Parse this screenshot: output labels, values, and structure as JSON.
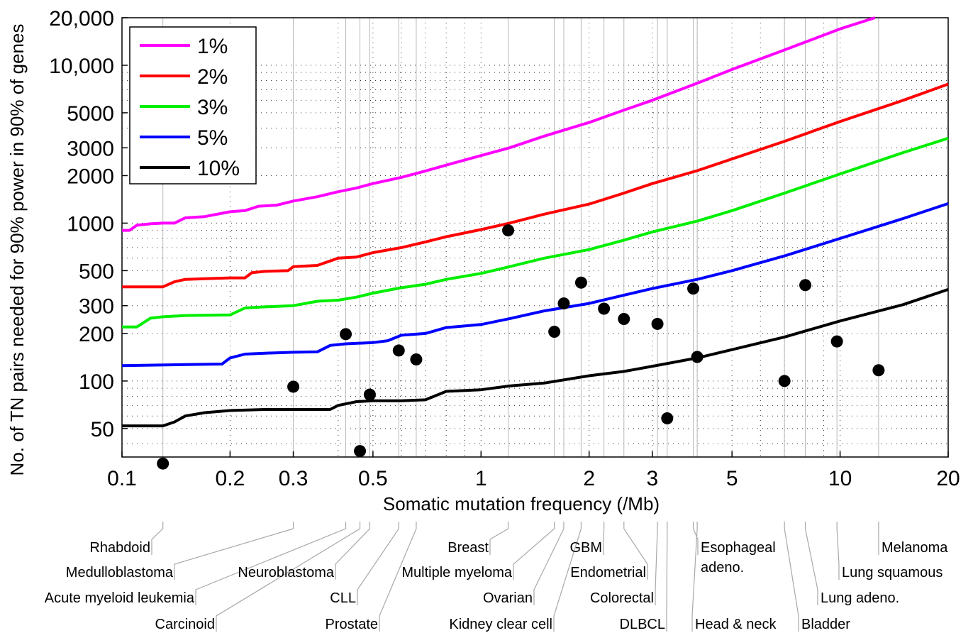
{
  "chart_data": {
    "type": "line",
    "xlabel": "Somatic mutation frequency (/Mb)",
    "ylabel": "No. of TN pairs needed for 90% power in 90% of genes",
    "x_scale": "log",
    "y_scale": "log",
    "xlim": [
      0.1,
      20
    ],
    "ylim": [
      33,
      20000
    ],
    "x_ticks": [
      0.1,
      0.2,
      0.3,
      0.5,
      1,
      2,
      3,
      5,
      10,
      20
    ],
    "x_tick_labels": [
      "0.1",
      "0.2",
      "0.3",
      "0.5",
      "1",
      "2",
      "3",
      "5",
      "10",
      "20"
    ],
    "y_ticks": [
      50,
      100,
      200,
      300,
      500,
      1000,
      2000,
      3000,
      5000,
      10000,
      20000
    ],
    "y_tick_labels": [
      "50",
      "100",
      "200",
      "300",
      "500",
      "1000",
      "2000",
      "3000",
      "5000",
      "10,000",
      "20,000"
    ],
    "grid": "dotted",
    "legend_position": "top-left",
    "series": [
      {
        "name": "1%",
        "color": "#ff00ff",
        "points": [
          [
            0.1,
            900
          ],
          [
            0.105,
            900
          ],
          [
            0.11,
            970
          ],
          [
            0.12,
            990
          ],
          [
            0.13,
            1000
          ],
          [
            0.14,
            1000
          ],
          [
            0.15,
            1080
          ],
          [
            0.17,
            1100
          ],
          [
            0.2,
            1180
          ],
          [
            0.22,
            1200
          ],
          [
            0.24,
            1280
          ],
          [
            0.27,
            1300
          ],
          [
            0.3,
            1380
          ],
          [
            0.35,
            1470
          ],
          [
            0.4,
            1580
          ],
          [
            0.45,
            1670
          ],
          [
            0.5,
            1780
          ],
          [
            0.6,
            1950
          ],
          [
            0.7,
            2140
          ],
          [
            0.8,
            2330
          ],
          [
            1.0,
            2680
          ],
          [
            1.2,
            3000
          ],
          [
            1.5,
            3560
          ],
          [
            2.0,
            4340
          ],
          [
            2.5,
            5200
          ],
          [
            3.0,
            6000
          ],
          [
            4.0,
            7700
          ],
          [
            5.0,
            9400
          ],
          [
            7.0,
            12500
          ],
          [
            10.0,
            17000
          ],
          [
            12.5,
            20500
          ]
        ]
      },
      {
        "name": "2%",
        "color": "#ff0000",
        "points": [
          [
            0.1,
            395
          ],
          [
            0.13,
            395
          ],
          [
            0.14,
            425
          ],
          [
            0.15,
            440
          ],
          [
            0.17,
            445
          ],
          [
            0.2,
            450
          ],
          [
            0.22,
            450
          ],
          [
            0.23,
            485
          ],
          [
            0.25,
            495
          ],
          [
            0.29,
            500
          ],
          [
            0.3,
            530
          ],
          [
            0.35,
            540
          ],
          [
            0.4,
            600
          ],
          [
            0.45,
            610
          ],
          [
            0.5,
            650
          ],
          [
            0.6,
            700
          ],
          [
            0.7,
            760
          ],
          [
            0.8,
            820
          ],
          [
            1.0,
            910
          ],
          [
            1.2,
            1000
          ],
          [
            1.5,
            1140
          ],
          [
            2.0,
            1320
          ],
          [
            2.5,
            1550
          ],
          [
            3.0,
            1780
          ],
          [
            4.0,
            2150
          ],
          [
            5.0,
            2550
          ],
          [
            7.0,
            3300
          ],
          [
            10.0,
            4400
          ],
          [
            15.0,
            6000
          ],
          [
            20.0,
            7600
          ]
        ]
      },
      {
        "name": "3%",
        "color": "#00ee00",
        "points": [
          [
            0.1,
            220
          ],
          [
            0.11,
            220
          ],
          [
            0.12,
            250
          ],
          [
            0.13,
            255
          ],
          [
            0.15,
            260
          ],
          [
            0.2,
            262
          ],
          [
            0.22,
            290
          ],
          [
            0.25,
            295
          ],
          [
            0.3,
            300
          ],
          [
            0.35,
            320
          ],
          [
            0.4,
            325
          ],
          [
            0.45,
            340
          ],
          [
            0.5,
            360
          ],
          [
            0.6,
            390
          ],
          [
            0.7,
            410
          ],
          [
            0.8,
            440
          ],
          [
            1.0,
            480
          ],
          [
            1.2,
            530
          ],
          [
            1.5,
            600
          ],
          [
            2.0,
            680
          ],
          [
            2.5,
            780
          ],
          [
            3.0,
            880
          ],
          [
            4.0,
            1030
          ],
          [
            5.0,
            1200
          ],
          [
            7.0,
            1550
          ],
          [
            10.0,
            2050
          ],
          [
            15.0,
            2800
          ],
          [
            20.0,
            3450
          ]
        ]
      },
      {
        "name": "5%",
        "color": "#0000ff",
        "points": [
          [
            0.1,
            125
          ],
          [
            0.15,
            127
          ],
          [
            0.19,
            128
          ],
          [
            0.2,
            140
          ],
          [
            0.22,
            148
          ],
          [
            0.25,
            150
          ],
          [
            0.3,
            152
          ],
          [
            0.35,
            153
          ],
          [
            0.38,
            168
          ],
          [
            0.42,
            172
          ],
          [
            0.5,
            175
          ],
          [
            0.55,
            180
          ],
          [
            0.6,
            195
          ],
          [
            0.7,
            200
          ],
          [
            0.8,
            218
          ],
          [
            1.0,
            228
          ],
          [
            1.2,
            248
          ],
          [
            1.5,
            278
          ],
          [
            2.0,
            310
          ],
          [
            2.5,
            350
          ],
          [
            3.0,
            385
          ],
          [
            4.0,
            440
          ],
          [
            5.0,
            500
          ],
          [
            7.0,
            620
          ],
          [
            10.0,
            800
          ],
          [
            15.0,
            1070
          ],
          [
            20.0,
            1330
          ]
        ]
      },
      {
        "name": "10%",
        "color": "#000000",
        "points": [
          [
            0.1,
            52
          ],
          [
            0.13,
            52
          ],
          [
            0.14,
            55
          ],
          [
            0.15,
            60
          ],
          [
            0.17,
            63
          ],
          [
            0.2,
            65
          ],
          [
            0.25,
            66
          ],
          [
            0.3,
            66
          ],
          [
            0.35,
            66
          ],
          [
            0.38,
            66
          ],
          [
            0.4,
            70
          ],
          [
            0.45,
            74
          ],
          [
            0.5,
            75
          ],
          [
            0.6,
            75
          ],
          [
            0.7,
            76
          ],
          [
            0.8,
            86
          ],
          [
            1.0,
            88
          ],
          [
            1.2,
            93
          ],
          [
            1.5,
            97
          ],
          [
            2.0,
            108
          ],
          [
            2.5,
            115
          ],
          [
            3.0,
            124
          ],
          [
            4.0,
            140
          ],
          [
            5.0,
            158
          ],
          [
            7.0,
            190
          ],
          [
            10.0,
            240
          ],
          [
            15.0,
            305
          ],
          [
            20.0,
            380
          ]
        ]
      }
    ],
    "cancer_types": [
      {
        "name": "Rhabdoid",
        "x": 0.13,
        "y": 30
      },
      {
        "name": "Medulloblastoma",
        "x": 0.3,
        "y": 92
      },
      {
        "name": "Acute myeloid leukemia",
        "x": 0.42,
        "y": 198
      },
      {
        "name": "Carcinoid",
        "x": 0.46,
        "y": 36
      },
      {
        "name": "Neuroblastoma",
        "x": 0.49,
        "y": 82
      },
      {
        "name": "CLL",
        "x": 0.59,
        "y": 156
      },
      {
        "name": "Prostate",
        "x": 0.66,
        "y": 137
      },
      {
        "name": "Breast",
        "x": 1.19,
        "y": 900
      },
      {
        "name": "Multiple myeloma",
        "x": 1.6,
        "y": 205
      },
      {
        "name": "Ovarian",
        "x": 1.7,
        "y": 310
      },
      {
        "name": "Kidney clear cell",
        "x": 1.9,
        "y": 420
      },
      {
        "name": "GBM",
        "x": 2.2,
        "y": 287
      },
      {
        "name": "Endometrial",
        "x": 2.5,
        "y": 247
      },
      {
        "name": "Colorectal",
        "x": 3.1,
        "y": 230
      },
      {
        "name": "DLBCL",
        "x": 3.3,
        "y": 58
      },
      {
        "name": "Esophageal\nadeno.",
        "x": 3.9,
        "y": 385
      },
      {
        "name": "Head & neck",
        "x": 4.0,
        "y": 142
      },
      {
        "name": "Bladder",
        "x": 7.0,
        "y": 100
      },
      {
        "name": "Lung adeno.",
        "x": 8.0,
        "y": 405
      },
      {
        "name": "Lung squamous",
        "x": 9.8,
        "y": 178
      },
      {
        "name": "Melanoma",
        "x": 12.8,
        "y": 117
      }
    ]
  }
}
